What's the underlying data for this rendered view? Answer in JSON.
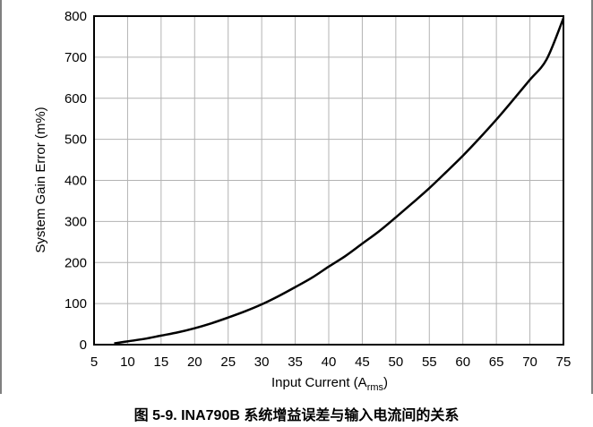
{
  "chart_data": {
    "type": "line",
    "title": "",
    "caption": "图 5-9. INA790B 系统增益误差与输入电流间的关系",
    "xlabel": "Input Current (A",
    "xlabel_sub": "rms",
    "xlabel_close": ")",
    "ylabel": "System Gain Error (m%)",
    "xlim": [
      5,
      75
    ],
    "ylim": [
      0,
      800
    ],
    "xticks": [
      "5",
      "10",
      "15",
      "20",
      "25",
      "30",
      "35",
      "40",
      "45",
      "50",
      "55",
      "60",
      "65",
      "70",
      "75"
    ],
    "yticks": [
      "0",
      "100",
      "200",
      "300",
      "400",
      "500",
      "600",
      "700",
      "800"
    ],
    "grid": true,
    "series": [
      {
        "x": [
          8,
          10,
          12.5,
          15,
          17.5,
          20,
          22.5,
          25,
          27.5,
          30,
          32.5,
          35,
          37.5,
          40,
          42.5,
          45,
          47.5,
          50,
          52.5,
          55,
          57.5,
          60,
          62.5,
          65,
          67.5,
          70,
          72.5,
          75
        ],
        "values": [
          3,
          8,
          14,
          22,
          30,
          40,
          52,
          66,
          81,
          98,
          118,
          140,
          163,
          190,
          216,
          246,
          276,
          310,
          345,
          381,
          420,
          460,
          503,
          548,
          596,
          645,
          695,
          795
        ]
      }
    ],
    "colors": {
      "line": "#000000",
      "grid": "#b3b3b3",
      "frame": "#000000"
    }
  }
}
